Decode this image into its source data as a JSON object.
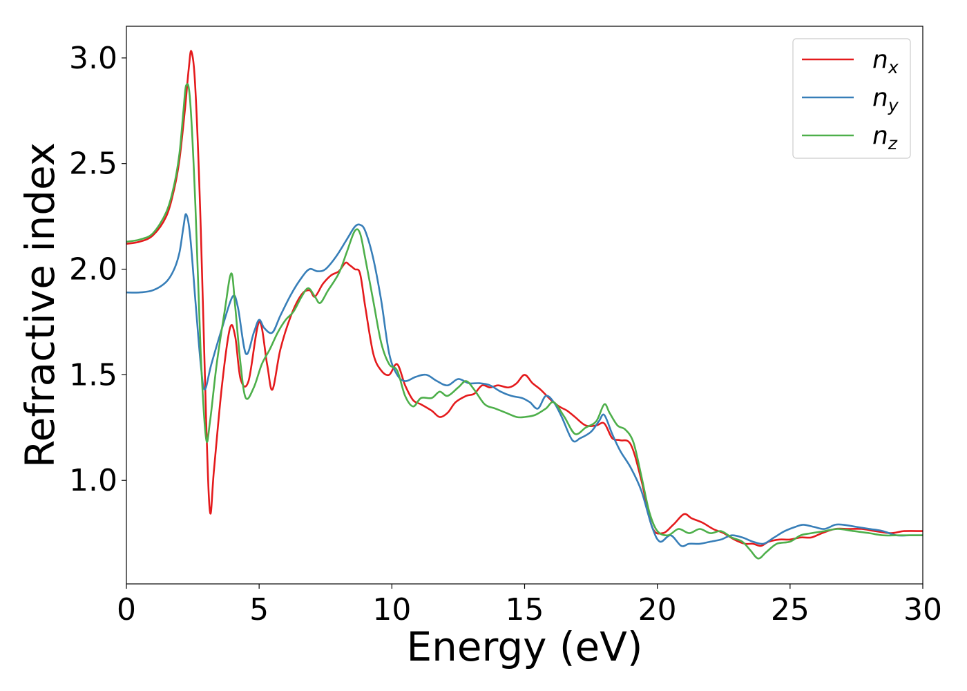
{
  "chart_data": {
    "type": "line",
    "title": "",
    "xlabel": "Energy (eV)",
    "ylabel": "Refractive index",
    "xlim": [
      0,
      30
    ],
    "ylim": [
      0.51,
      3.15
    ],
    "xticks": [
      0,
      5,
      10,
      15,
      20,
      25,
      30
    ],
    "xtick_labels": [
      "0",
      "5",
      "10",
      "15",
      "20",
      "25",
      "30"
    ],
    "yticks": [
      1.0,
      1.5,
      2.0,
      2.5,
      3.0
    ],
    "ytick_labels": [
      "1.0",
      "1.5",
      "2.0",
      "2.5",
      "3.0"
    ],
    "grid": false,
    "legend_position": "top-right",
    "colors": {
      "n_x": "#e41a1c",
      "n_y": "#377eb8",
      "n_z": "#4daf4a"
    },
    "series": [
      {
        "name": "n_x",
        "legend_base": "n",
        "legend_sub": "x",
        "color": "#e41a1c",
        "x": [
          0,
          0.5,
          1.0,
          1.5,
          1.8,
          2.0,
          2.2,
          2.35,
          2.45,
          2.6,
          2.8,
          3.0,
          3.15,
          3.3,
          3.6,
          3.9,
          4.1,
          4.3,
          4.6,
          5.0,
          5.3,
          5.5,
          5.8,
          6.2,
          6.6,
          6.9,
          7.1,
          7.4,
          7.7,
          8.0,
          8.25,
          8.4,
          8.6,
          8.8,
          9.0,
          9.3,
          9.6,
          9.9,
          10.2,
          10.5,
          10.8,
          11.1,
          11.5,
          11.8,
          12.1,
          12.4,
          12.8,
          13.1,
          13.4,
          13.7,
          14.0,
          14.4,
          14.7,
          15.0,
          15.3,
          15.6,
          16.0,
          16.3,
          16.6,
          16.9,
          17.3,
          17.7,
          18.0,
          18.3,
          18.6,
          19.0,
          19.4,
          19.8,
          20.2,
          20.6,
          21.0,
          21.3,
          21.7,
          22.1,
          22.5,
          22.9,
          23.3,
          23.6,
          23.9,
          24.2,
          24.6,
          25.0,
          25.4,
          25.8,
          26.2,
          26.7,
          27.2,
          27.7,
          28.2,
          28.8,
          29.3,
          30.0
        ],
        "y": [
          2.12,
          2.13,
          2.16,
          2.25,
          2.38,
          2.52,
          2.75,
          2.95,
          3.03,
          2.85,
          2.2,
          1.3,
          0.85,
          1.05,
          1.45,
          1.72,
          1.68,
          1.48,
          1.47,
          1.75,
          1.55,
          1.43,
          1.62,
          1.78,
          1.88,
          1.9,
          1.87,
          1.93,
          1.97,
          1.99,
          2.03,
          2.02,
          2.0,
          1.98,
          1.82,
          1.6,
          1.52,
          1.5,
          1.55,
          1.45,
          1.38,
          1.36,
          1.33,
          1.3,
          1.32,
          1.37,
          1.4,
          1.41,
          1.45,
          1.44,
          1.45,
          1.44,
          1.46,
          1.5,
          1.46,
          1.43,
          1.38,
          1.35,
          1.33,
          1.3,
          1.26,
          1.26,
          1.27,
          1.2,
          1.19,
          1.17,
          1.0,
          0.78,
          0.75,
          0.79,
          0.84,
          0.82,
          0.8,
          0.77,
          0.75,
          0.72,
          0.7,
          0.7,
          0.69,
          0.71,
          0.72,
          0.72,
          0.73,
          0.73,
          0.75,
          0.77,
          0.77,
          0.77,
          0.76,
          0.75,
          0.76,
          0.76
        ]
      },
      {
        "name": "n_y",
        "legend_base": "n",
        "legend_sub": "y",
        "color": "#377eb8",
        "x": [
          0,
          0.5,
          1.0,
          1.5,
          1.8,
          2.0,
          2.15,
          2.25,
          2.4,
          2.6,
          2.8,
          2.95,
          3.2,
          3.6,
          4.0,
          4.2,
          4.5,
          4.8,
          5.0,
          5.2,
          5.5,
          5.8,
          6.2,
          6.6,
          6.9,
          7.2,
          7.5,
          7.9,
          8.3,
          8.6,
          8.8,
          9.0,
          9.3,
          9.6,
          9.9,
          10.2,
          10.5,
          10.9,
          11.3,
          11.7,
          12.1,
          12.5,
          12.9,
          13.3,
          13.7,
          14.1,
          14.5,
          14.9,
          15.2,
          15.5,
          15.8,
          16.1,
          16.4,
          16.8,
          17.1,
          17.5,
          17.8,
          18.0,
          18.3,
          18.6,
          19.0,
          19.4,
          19.8,
          20.1,
          20.5,
          20.9,
          21.2,
          21.6,
          22.0,
          22.4,
          22.8,
          23.2,
          23.6,
          24.0,
          24.4,
          24.8,
          25.2,
          25.5,
          25.9,
          26.3,
          26.7,
          27.0,
          27.5,
          28.0,
          28.5,
          29.0,
          29.5,
          30.0
        ],
        "y": [
          1.89,
          1.89,
          1.9,
          1.94,
          2.0,
          2.08,
          2.2,
          2.26,
          2.16,
          1.85,
          1.55,
          1.43,
          1.55,
          1.72,
          1.87,
          1.82,
          1.6,
          1.7,
          1.76,
          1.72,
          1.7,
          1.78,
          1.88,
          1.96,
          2.0,
          1.99,
          2.0,
          2.06,
          2.14,
          2.2,
          2.21,
          2.18,
          2.05,
          1.85,
          1.6,
          1.5,
          1.47,
          1.49,
          1.5,
          1.47,
          1.45,
          1.48,
          1.46,
          1.46,
          1.45,
          1.42,
          1.4,
          1.39,
          1.37,
          1.34,
          1.4,
          1.37,
          1.3,
          1.19,
          1.2,
          1.23,
          1.28,
          1.31,
          1.22,
          1.14,
          1.06,
          0.95,
          0.78,
          0.71,
          0.74,
          0.69,
          0.7,
          0.7,
          0.71,
          0.72,
          0.74,
          0.73,
          0.71,
          0.7,
          0.73,
          0.76,
          0.78,
          0.79,
          0.78,
          0.77,
          0.79,
          0.79,
          0.78,
          0.77,
          0.76,
          0.74,
          0.74,
          0.74
        ]
      },
      {
        "name": "n_z",
        "legend_base": "n",
        "legend_sub": "z",
        "color": "#4daf4a",
        "x": [
          0,
          0.5,
          1.0,
          1.5,
          1.8,
          2.0,
          2.15,
          2.25,
          2.4,
          2.6,
          2.8,
          3.0,
          3.15,
          3.4,
          3.7,
          3.95,
          4.1,
          4.3,
          4.5,
          4.8,
          5.1,
          5.4,
          5.7,
          6.0,
          6.3,
          6.6,
          6.85,
          7.1,
          7.3,
          7.6,
          8.0,
          8.3,
          8.6,
          8.8,
          9.0,
          9.3,
          9.6,
          9.9,
          10.2,
          10.5,
          10.8,
          11.1,
          11.5,
          11.8,
          12.1,
          12.5,
          12.8,
          13.1,
          13.5,
          13.9,
          14.3,
          14.7,
          15.0,
          15.4,
          15.8,
          16.1,
          16.5,
          16.9,
          17.3,
          17.7,
          18.0,
          18.2,
          18.5,
          18.8,
          19.1,
          19.4,
          19.7,
          20.0,
          20.4,
          20.8,
          21.2,
          21.6,
          22.0,
          22.4,
          22.8,
          23.2,
          23.5,
          23.8,
          24.1,
          24.5,
          25.0,
          25.4,
          25.8,
          26.3,
          26.8,
          27.4,
          28.0,
          28.5,
          29.0,
          29.5,
          30.0
        ],
        "y": [
          2.13,
          2.14,
          2.17,
          2.27,
          2.4,
          2.55,
          2.75,
          2.87,
          2.8,
          2.3,
          1.6,
          1.2,
          1.28,
          1.55,
          1.8,
          1.98,
          1.82,
          1.55,
          1.39,
          1.44,
          1.55,
          1.62,
          1.7,
          1.76,
          1.8,
          1.87,
          1.91,
          1.87,
          1.84,
          1.9,
          1.98,
          2.08,
          2.18,
          2.17,
          2.05,
          1.85,
          1.65,
          1.55,
          1.52,
          1.4,
          1.35,
          1.39,
          1.39,
          1.42,
          1.4,
          1.44,
          1.47,
          1.43,
          1.36,
          1.34,
          1.32,
          1.3,
          1.3,
          1.31,
          1.34,
          1.37,
          1.3,
          1.22,
          1.25,
          1.28,
          1.36,
          1.32,
          1.26,
          1.24,
          1.18,
          1.02,
          0.85,
          0.76,
          0.74,
          0.77,
          0.75,
          0.77,
          0.75,
          0.76,
          0.73,
          0.71,
          0.67,
          0.63,
          0.66,
          0.7,
          0.71,
          0.74,
          0.75,
          0.76,
          0.77,
          0.76,
          0.75,
          0.74,
          0.74,
          0.74,
          0.74
        ]
      }
    ]
  }
}
